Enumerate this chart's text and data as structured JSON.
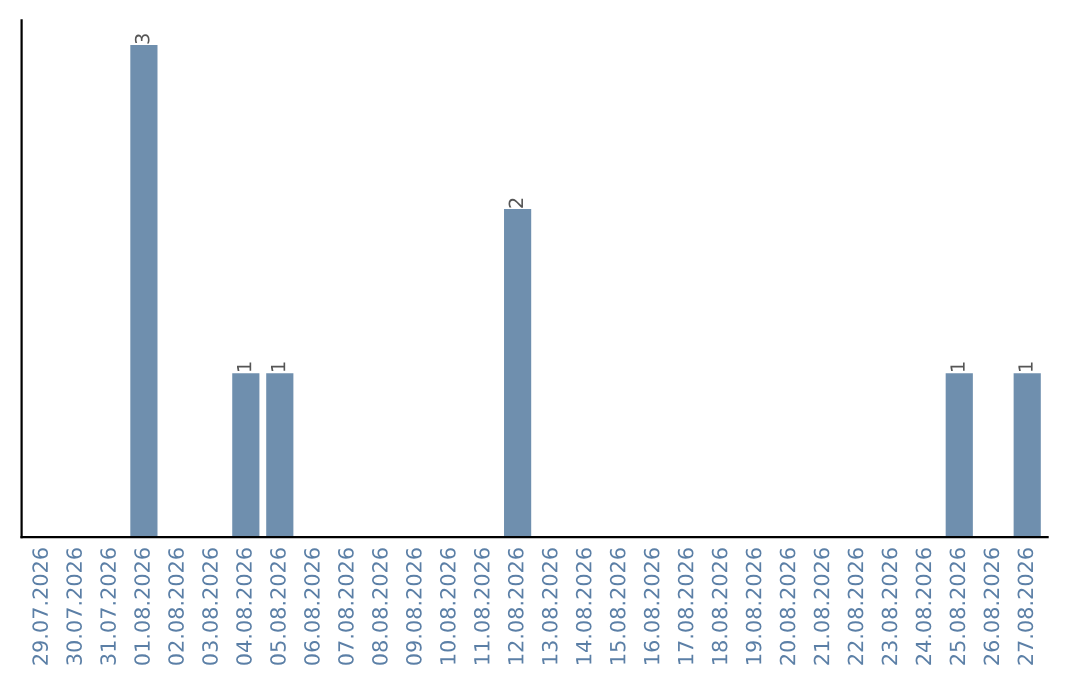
{
  "chart_data": {
    "type": "bar",
    "categories": [
      "29.07.2026",
      "30.07.2026",
      "31.07.2026",
      "01.08.2026",
      "02.08.2026",
      "03.08.2026",
      "04.08.2026",
      "05.08.2026",
      "06.08.2026",
      "07.08.2026",
      "08.08.2026",
      "09.08.2026",
      "10.08.2026",
      "11.08.2026",
      "12.08.2026",
      "13.08.2026",
      "14.08.2026",
      "15.08.2026",
      "16.08.2026",
      "17.08.2026",
      "18.08.2026",
      "19.08.2026",
      "20.08.2026",
      "21.08.2026",
      "22.08.2026",
      "23.08.2026",
      "24.08.2026",
      "25.08.2026",
      "26.08.2026",
      "27.08.2026"
    ],
    "values": [
      0,
      0,
      0,
      3,
      0,
      0,
      1,
      1,
      0,
      0,
      0,
      0,
      0,
      0,
      2,
      0,
      0,
      0,
      0,
      0,
      0,
      0,
      0,
      0,
      0,
      0,
      0,
      1,
      0,
      1
    ],
    "value_labels": [
      null,
      null,
      null,
      "3",
      null,
      null,
      "1",
      "1",
      null,
      null,
      null,
      null,
      null,
      null,
      "2",
      null,
      null,
      null,
      null,
      null,
      null,
      null,
      null,
      null,
      null,
      null,
      null,
      "1",
      null,
      "1"
    ],
    "color": "#6f8fae"
  }
}
